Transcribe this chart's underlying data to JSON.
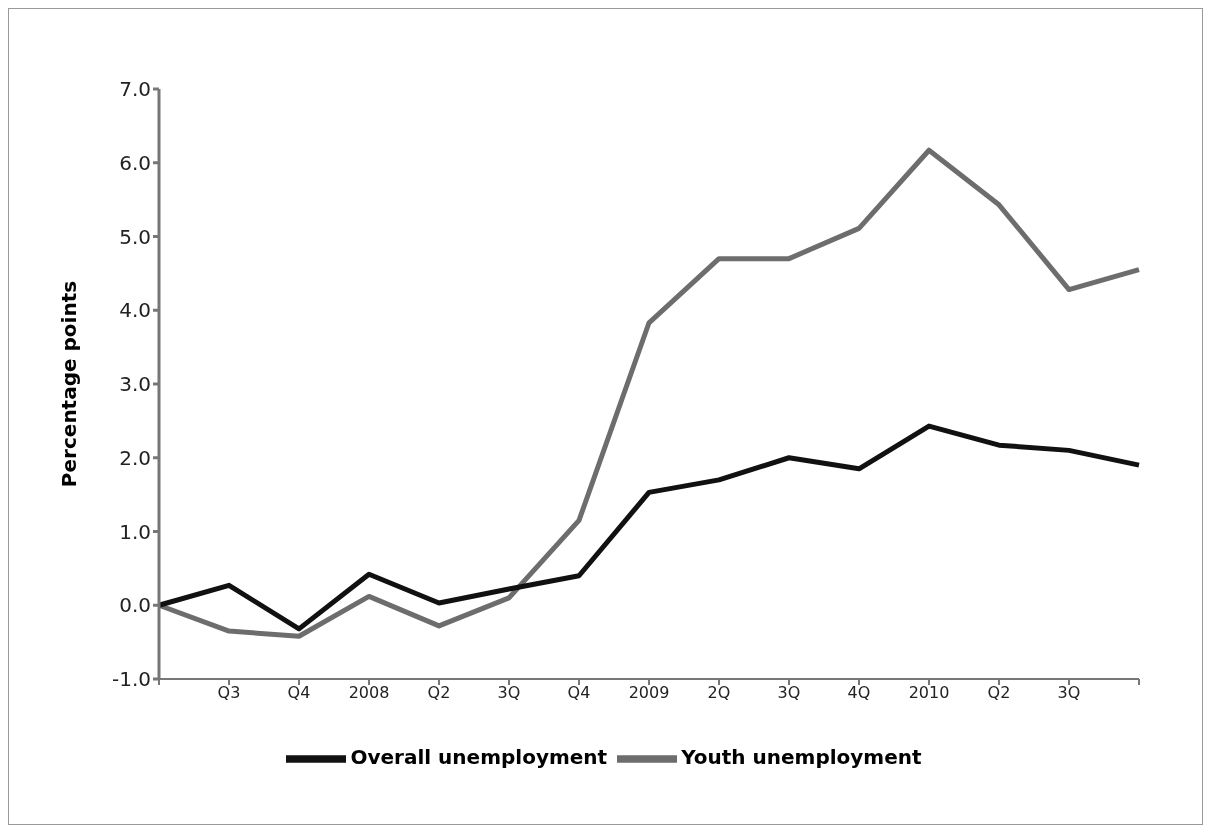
{
  "chart_data": {
    "type": "line",
    "ylabel": "Percentage points",
    "categories": [
      null,
      "Q3",
      "Q4",
      "2008",
      "Q2",
      "3Q",
      "Q4",
      "2009",
      "2Q",
      "3Q",
      "4Q",
      "2010",
      "Q2",
      "3Q",
      null
    ],
    "series": [
      {
        "name": "Youth unemployment",
        "color": "#6d6d6d",
        "values": [
          0,
          -0.35,
          -0.42,
          0.12,
          -0.28,
          0.1,
          1.15,
          3.83,
          4.7,
          4.7,
          5.11,
          6.17,
          5.43,
          4.28,
          4.55
        ]
      },
      {
        "name": "Overall unemployment",
        "color": "#111111",
        "values": [
          0,
          0.27,
          -0.32,
          0.42,
          0.03,
          0.22,
          0.4,
          1.53,
          1.7,
          2.0,
          1.85,
          2.43,
          2.17,
          2.1,
          1.9
        ]
      }
    ],
    "ylim": [
      -1,
      7
    ],
    "yticks": [
      {
        "value": -1,
        "label": "-1.0"
      },
      {
        "value": 0,
        "label": "0.0"
      },
      {
        "value": 1,
        "label": "1.0"
      },
      {
        "value": 2,
        "label": "2.0"
      },
      {
        "value": 3,
        "label": "3.0"
      },
      {
        "value": 4,
        "label": "4.0"
      },
      {
        "value": 5,
        "label": "5.0"
      },
      {
        "value": 6,
        "label": "6.0"
      },
      {
        "value": 7,
        "label": "7.0"
      }
    ],
    "grid": false,
    "legend": "bottom",
    "marker": "none",
    "line_style": "solid"
  }
}
